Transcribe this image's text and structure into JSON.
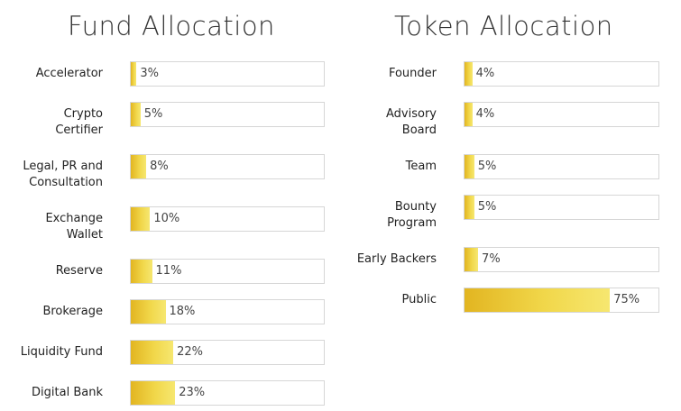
{
  "fund": {
    "title": "Fund Allocation",
    "items": [
      {
        "label": "Accelerator",
        "value": 3,
        "text": "3%"
      },
      {
        "label": "Crypto\nCertifier",
        "value": 5,
        "text": "5%"
      },
      {
        "label": "Legal, PR and\nConsultation",
        "value": 8,
        "text": "8%"
      },
      {
        "label": "Exchange\nWallet",
        "value": 10,
        "text": "10%"
      },
      {
        "label": "Reserve",
        "value": 11,
        "text": "11%"
      },
      {
        "label": "Brokerage",
        "value": 18,
        "text": "18%"
      },
      {
        "label": "Liquidity Fund",
        "value": 22,
        "text": "22%"
      },
      {
        "label": "Digital Bank",
        "value": 23,
        "text": "23%"
      }
    ]
  },
  "token": {
    "title": "Token Allocation",
    "items": [
      {
        "label": "Founder",
        "value": 4,
        "text": "4%"
      },
      {
        "label": "Advisory\nBoard",
        "value": 4,
        "text": "4%"
      },
      {
        "label": "Team",
        "value": 5,
        "text": "5%"
      },
      {
        "label": "Bounty\nProgram",
        "value": 5,
        "text": "5%"
      },
      {
        "label": "Early Backers",
        "value": 7,
        "text": "7%"
      },
      {
        "label": "Public",
        "value": 75,
        "text": "75%"
      }
    ]
  },
  "chart_data": [
    {
      "type": "bar",
      "title": "Fund Allocation",
      "categories": [
        "Accelerator",
        "Crypto Certifier",
        "Legal, PR and Consultation",
        "Exchange Wallet",
        "Reserve",
        "Brokerage",
        "Liquidity Fund",
        "Digital Bank"
      ],
      "values": [
        3,
        5,
        8,
        10,
        11,
        18,
        22,
        23
      ],
      "ylim": [
        0,
        100
      ]
    },
    {
      "type": "bar",
      "title": "Token Allocation",
      "categories": [
        "Founder",
        "Advisory Board",
        "Team",
        "Bounty Program",
        "Early Backers",
        "Public"
      ],
      "values": [
        4,
        4,
        5,
        5,
        7,
        75
      ],
      "ylim": [
        0,
        100
      ]
    }
  ],
  "colors": {
    "bar_start": "#e2b521",
    "bar_end": "#f6e770",
    "track_border": "#d6d6d6"
  }
}
